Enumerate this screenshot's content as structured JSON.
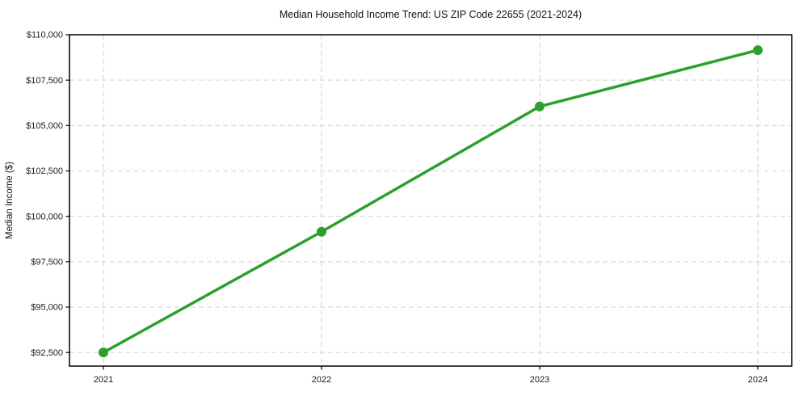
{
  "chart_data": {
    "type": "line",
    "title": "Median Household Income Trend: US ZIP Code 22655 (2021-2024)",
    "xlabel": "",
    "ylabel": "Median Income ($)",
    "categories": [
      "2021",
      "2022",
      "2023",
      "2024"
    ],
    "series": [
      {
        "name": "Median Household Income",
        "values": [
          92500,
          99150,
          106050,
          109150
        ],
        "color": "#2ca02c",
        "marker": "circle"
      }
    ],
    "ylim": [
      91750,
      110000
    ],
    "yticks": [
      {
        "value": 92500,
        "label": "$92,500"
      },
      {
        "value": 95000,
        "label": "$95,000"
      },
      {
        "value": 97500,
        "label": "$97,500"
      },
      {
        "value": 100000,
        "label": "$100,000"
      },
      {
        "value": 102500,
        "label": "$102,500"
      },
      {
        "value": 105000,
        "label": "$105,000"
      },
      {
        "value": 107500,
        "label": "$107,500"
      },
      {
        "value": 110000,
        "label": "$110,000"
      }
    ],
    "xtick_labels": [
      "2021",
      "2022",
      "2023",
      "2024"
    ],
    "grid": "dashed-both-axes",
    "legend_position": "none",
    "colors": {
      "line": "#2ca02c",
      "grid": "#d2d2d2",
      "axis": "#000000",
      "background": "#ffffff",
      "text": "#111111"
    }
  }
}
